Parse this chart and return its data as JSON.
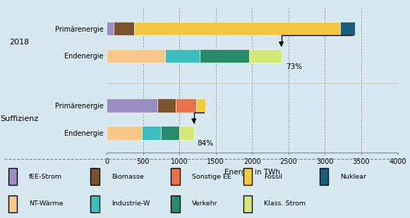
{
  "background_color": "#d8e8f0",
  "bars": {
    "2018_Primaer": {
      "segments": [
        {
          "name": "fEE-Strom",
          "value": 100,
          "color": "#9b8ec4"
        },
        {
          "name": "Biomasse",
          "value": 280,
          "color": "#7a5230"
        },
        {
          "name": "Fossil",
          "value": 2830,
          "color": "#f5c842"
        },
        {
          "name": "Nuklear",
          "value": 200,
          "color": "#1a5f7a"
        }
      ]
    },
    "2018_End": {
      "segments": [
        {
          "name": "NT-Wärme",
          "value": 800,
          "color": "#f5c88a"
        },
        {
          "name": "Industrie-W",
          "value": 480,
          "color": "#3dbdbd"
        },
        {
          "name": "Verkehr",
          "value": 680,
          "color": "#2a8a6e"
        },
        {
          "name": "Klass. Strom",
          "value": 440,
          "color": "#d4e87a"
        }
      ]
    },
    "Suff_Primaer": {
      "segments": [
        {
          "name": "fEE-Strom",
          "value": 700,
          "color": "#9b8ec4"
        },
        {
          "name": "Biomasse",
          "value": 250,
          "color": "#7a5230"
        },
        {
          "name": "Sonstige EE",
          "value": 280,
          "color": "#e8734a"
        },
        {
          "name": "Fossil",
          "value": 130,
          "color": "#f5c842"
        }
      ]
    },
    "Suff_End": {
      "segments": [
        {
          "name": "NT-Wärme",
          "value": 480,
          "color": "#f5c88a"
        },
        {
          "name": "Industrie-W",
          "value": 270,
          "color": "#3dbdbd"
        },
        {
          "name": "Verkehr",
          "value": 250,
          "color": "#2a8a6e"
        },
        {
          "name": "Klass. Strom",
          "value": 200,
          "color": "#d4e87a"
        }
      ]
    }
  },
  "xlabel": "Energie in TWh",
  "xlim": [
    0,
    4000
  ],
  "xticks": [
    0,
    500,
    1000,
    1500,
    2000,
    2500,
    3000,
    3500,
    4000
  ],
  "legend_items": [
    {
      "name": "fEE-Strom",
      "color": "#9b8ec4"
    },
    {
      "name": "Biomasse",
      "color": "#7a5230"
    },
    {
      "name": "Sonstige EE",
      "color": "#e8734a"
    },
    {
      "name": "Fossil",
      "color": "#f5c842"
    },
    {
      "name": "Nuklear",
      "color": "#1a5f7a"
    },
    {
      "name": "NT-Wärme",
      "color": "#f5c88a"
    },
    {
      "name": "Industrie-W",
      "color": "#3dbdbd"
    },
    {
      "name": "Verkehr",
      "color": "#2a8a6e"
    },
    {
      "name": "Klass. Strom",
      "color": "#d4e87a"
    }
  ]
}
